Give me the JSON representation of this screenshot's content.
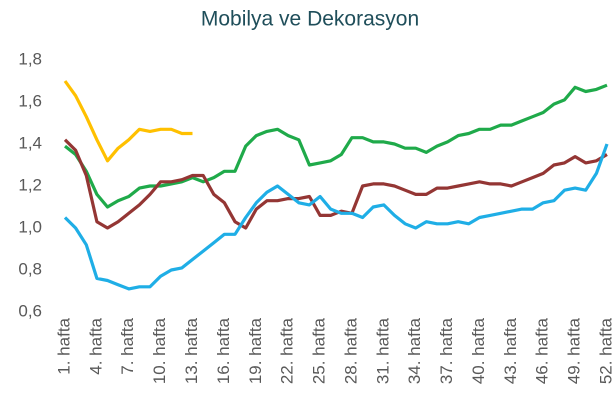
{
  "chart_data": {
    "type": "line",
    "title": "Mobilya ve Dekorasyon",
    "categories": [
      "1. hafta",
      null,
      null,
      "4. hafta",
      null,
      null,
      "7. hafta",
      null,
      null,
      "10. hafta",
      null,
      null,
      "13. hafta",
      null,
      null,
      "16. hafta",
      null,
      null,
      "19. hafta",
      null,
      null,
      "22. hafta",
      null,
      null,
      "25. hafta",
      null,
      null,
      "28. hafta",
      null,
      null,
      "31. hafta",
      null,
      null,
      "34. hafta",
      null,
      null,
      "37. hafta",
      null,
      null,
      "40. hafta",
      null,
      null,
      "43. hafta",
      null,
      null,
      "46. hafta",
      null,
      null,
      "49. hafta",
      null,
      null,
      "52. hafta"
    ],
    "ylim": [
      0.6,
      1.8
    ],
    "yticks": [
      {
        "value": 0.6,
        "label": "0,6"
      },
      {
        "value": 0.8,
        "label": "0,8"
      },
      {
        "value": 1.0,
        "label": "1,0"
      },
      {
        "value": 1.2,
        "label": "1,2"
      },
      {
        "value": 1.4,
        "label": "1,4"
      },
      {
        "value": 1.6,
        "label": "1,6"
      },
      {
        "value": 1.8,
        "label": "1,8"
      }
    ],
    "grid": false,
    "series": [
      {
        "color": "#ffc000",
        "values": [
          1.7,
          1.63,
          1.53,
          1.42,
          1.32,
          1.38,
          1.42,
          1.47,
          1.46,
          1.47,
          1.47,
          1.45,
          1.45,
          null,
          null,
          null,
          null,
          null,
          null,
          null,
          null,
          null,
          null,
          null,
          null,
          null,
          null,
          null,
          null,
          null,
          null,
          null,
          null,
          null,
          null,
          null,
          null,
          null,
          null,
          null,
          null,
          null,
          null,
          null,
          null,
          null,
          null,
          null,
          null,
          null,
          null,
          null
        ]
      },
      {
        "color": "#1faa4a",
        "values": [
          1.39,
          1.35,
          1.27,
          1.16,
          1.1,
          1.13,
          1.15,
          1.19,
          1.2,
          1.2,
          1.21,
          1.22,
          1.24,
          1.22,
          1.24,
          1.27,
          1.27,
          1.39,
          1.44,
          1.46,
          1.47,
          1.44,
          1.42,
          1.3,
          1.31,
          1.32,
          1.35,
          1.43,
          1.43,
          1.41,
          1.41,
          1.4,
          1.38,
          1.38,
          1.36,
          1.39,
          1.41,
          1.44,
          1.45,
          1.47,
          1.47,
          1.49,
          1.49,
          1.51,
          1.53,
          1.55,
          1.59,
          1.61,
          1.67,
          1.65,
          1.66,
          1.68
        ]
      },
      {
        "color": "#943634",
        "values": [
          1.42,
          1.37,
          1.25,
          1.03,
          1.0,
          1.03,
          1.07,
          1.11,
          1.16,
          1.22,
          1.22,
          1.23,
          1.25,
          1.25,
          1.16,
          1.12,
          1.03,
          1.0,
          1.09,
          1.13,
          1.13,
          1.14,
          1.14,
          1.15,
          1.06,
          1.06,
          1.08,
          1.07,
          1.2,
          1.21,
          1.21,
          1.2,
          1.18,
          1.16,
          1.16,
          1.19,
          1.19,
          1.2,
          1.21,
          1.22,
          1.21,
          1.21,
          1.2,
          1.22,
          1.24,
          1.26,
          1.3,
          1.31,
          1.34,
          1.31,
          1.32,
          1.35
        ]
      },
      {
        "color": "#1faee6",
        "values": [
          1.05,
          1.0,
          0.92,
          0.76,
          0.75,
          0.73,
          0.71,
          0.72,
          0.72,
          0.77,
          0.8,
          0.81,
          0.85,
          0.89,
          0.93,
          0.97,
          0.97,
          1.05,
          1.12,
          1.17,
          1.2,
          1.16,
          1.12,
          1.11,
          1.15,
          1.09,
          1.07,
          1.07,
          1.05,
          1.1,
          1.11,
          1.06,
          1.02,
          1.0,
          1.03,
          1.02,
          1.02,
          1.03,
          1.02,
          1.05,
          1.06,
          1.07,
          1.08,
          1.09,
          1.09,
          1.12,
          1.13,
          1.18,
          1.19,
          1.18,
          1.26,
          1.4
        ]
      }
    ]
  }
}
